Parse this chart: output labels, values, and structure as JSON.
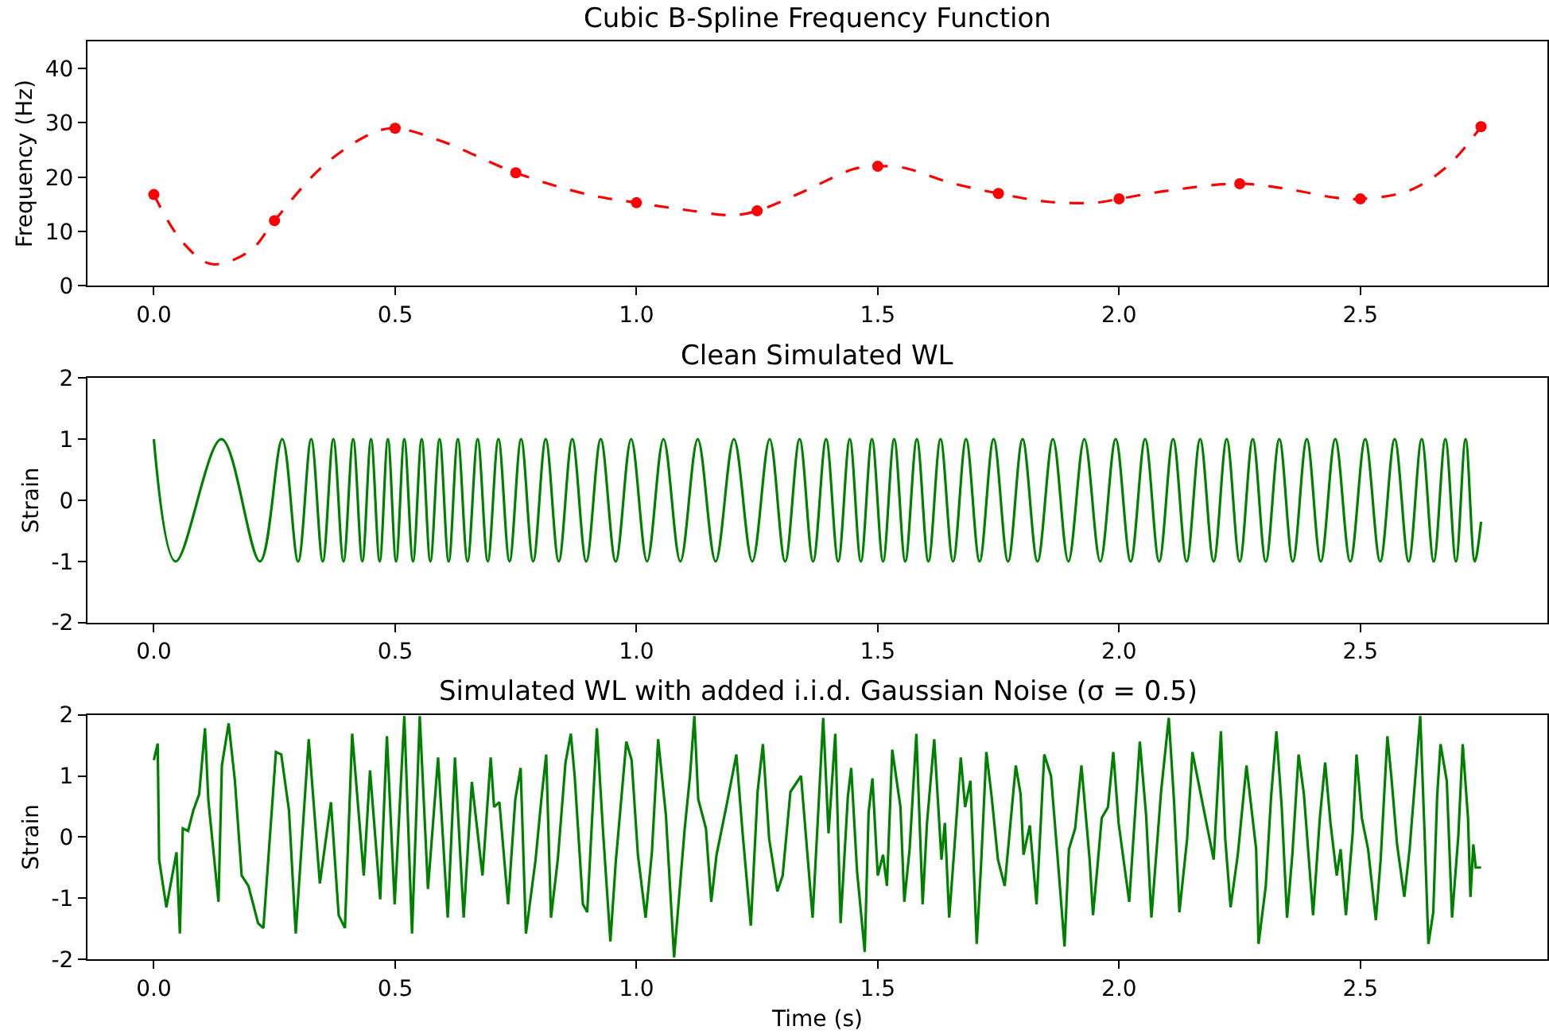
{
  "chart_data": [
    {
      "type": "line",
      "title": "Cubic B-Spline Frequency Function",
      "ylabel": "Frequency (Hz)",
      "xlim": [
        -0.1375,
        2.8875
      ],
      "xticks": [
        {
          "value": 0,
          "label": "0.0"
        },
        {
          "value": 0.5,
          "label": "0.5"
        },
        {
          "value": 1,
          "label": "1.0"
        },
        {
          "value": 1.5,
          "label": "1.5"
        },
        {
          "value": 2,
          "label": "2.0"
        },
        {
          "value": 2.5,
          "label": "2.5"
        }
      ],
      "ylim": [
        0,
        45
      ],
      "yticks": [
        0,
        10,
        20,
        30,
        40
      ],
      "series": [
        {
          "color": "#ff0000",
          "line_style": "dashed",
          "marker": "none",
          "x": [
            0,
            0.06,
            0.12,
            0.2,
            0.25,
            0.35,
            0.45,
            0.5,
            0.6,
            0.75,
            0.9,
            1.0,
            1.1,
            1.2,
            1.25,
            1.35,
            1.45,
            1.5,
            1.55,
            1.65,
            1.75,
            1.85,
            1.95,
            2.0,
            2.1,
            2.25,
            2.35,
            2.45,
            2.5,
            2.6,
            2.68,
            2.75
          ],
          "values": [
            16.8,
            8,
            4,
            6.5,
            12,
            22,
            28,
            29,
            26.5,
            20.8,
            16.8,
            15.3,
            14,
            13,
            13.8,
            17.5,
            21.5,
            22,
            21.8,
            19,
            17,
            15.5,
            15.3,
            16,
            17.5,
            18.8,
            17.8,
            16.2,
            16,
            17.5,
            22,
            29.3
          ]
        },
        {
          "type": "scatter",
          "color": "#ff0000",
          "marker": "circle",
          "x": [
            0,
            0.25,
            0.5,
            0.75,
            1.0,
            1.25,
            1.5,
            1.75,
            2.0,
            2.25,
            2.5,
            2.75
          ],
          "values": [
            16.8,
            12,
            29,
            20.8,
            15.3,
            13.8,
            22,
            17,
            16,
            18.8,
            16,
            29.3
          ]
        }
      ]
    },
    {
      "type": "line",
      "title": "Clean Simulated WL",
      "ylabel": "Strain",
      "xlim": [
        -0.1375,
        2.8875
      ],
      "xticks": [
        {
          "value": 0,
          "label": "0.0"
        },
        {
          "value": 0.5,
          "label": "0.5"
        },
        {
          "value": 1,
          "label": "1.0"
        },
        {
          "value": 1.5,
          "label": "1.5"
        },
        {
          "value": 2,
          "label": "2.0"
        },
        {
          "value": 2.5,
          "label": "2.5"
        }
      ],
      "ylim": [
        -2,
        2
      ],
      "yticks": [
        -2,
        -1,
        0,
        1,
        2
      ],
      "series": [
        {
          "color": "#008000",
          "line_style": "solid",
          "marker": "none",
          "x": [
            0,
            0.045,
            0.14,
            0.22,
            0.266,
            0.299,
            0.326,
            0.35,
            0.372,
            0.393,
            0.413,
            0.432,
            0.45,
            0.468,
            0.485,
            0.502,
            0.519,
            0.537,
            0.555,
            0.573,
            0.592,
            0.611,
            0.63,
            0.65,
            0.671,
            0.692,
            0.714,
            0.737,
            0.761,
            0.786,
            0.812,
            0.839,
            0.867,
            0.896,
            0.926,
            0.957,
            0.989,
            1.022,
            1.056,
            1.091,
            1.127,
            1.164,
            1.202,
            1.24,
            1.276,
            1.308,
            1.338,
            1.366,
            1.393,
            1.418,
            1.442,
            1.465,
            1.488,
            1.511,
            1.534,
            1.557,
            1.581,
            1.605,
            1.63,
            1.656,
            1.683,
            1.711,
            1.74,
            1.77,
            1.8,
            1.831,
            1.863,
            1.895,
            1.928,
            1.961,
            1.993,
            2.024,
            2.054,
            2.083,
            2.112,
            2.14,
            2.168,
            2.196,
            2.223,
            2.25,
            2.277,
            2.304,
            2.332,
            2.36,
            2.389,
            2.418,
            2.448,
            2.479,
            2.51,
            2.541,
            2.571,
            2.6,
            2.627,
            2.652,
            2.676,
            2.698,
            2.718,
            2.737,
            2.75
          ],
          "values": [
            1,
            -1,
            1,
            -1,
            1,
            -1,
            1,
            -1,
            1,
            -1,
            1,
            -1,
            1,
            -1,
            1,
            -1,
            1,
            -1,
            1,
            -1,
            1,
            -1,
            1,
            -1,
            1,
            -1,
            1,
            -1,
            1,
            -1,
            1,
            -1,
            1,
            -1,
            1,
            -1,
            1,
            -1,
            1,
            -1,
            1,
            -1,
            1,
            -1,
            1,
            -1,
            1,
            -1,
            1,
            -1,
            1,
            -1,
            1,
            -1,
            1,
            -1,
            1,
            -1,
            1,
            -1,
            1,
            -1,
            1,
            -1,
            1,
            -1,
            1,
            -1,
            1,
            -1,
            1,
            -1,
            1,
            -1,
            1,
            -1,
            1,
            -1,
            1,
            -1,
            1,
            -1,
            1,
            -1,
            1,
            -1,
            1,
            -1,
            1,
            -1,
            1,
            -1,
            1,
            -1,
            1,
            -1,
            1,
            -1,
            -0.35
          ]
        }
      ]
    },
    {
      "type": "line",
      "title": "Simulated WL with added i.i.d. Gaussian Noise (σ = 0.5)",
      "xlabel": "Time (s)",
      "ylabel": "Strain",
      "xlim": [
        -0.1375,
        2.8875
      ],
      "xticks": [
        {
          "value": 0,
          "label": "0.0"
        },
        {
          "value": 0.5,
          "label": "0.5"
        },
        {
          "value": 1,
          "label": "1.0"
        },
        {
          "value": 1.5,
          "label": "1.5"
        },
        {
          "value": 2,
          "label": "2.0"
        },
        {
          "value": 2.5,
          "label": "2.5"
        }
      ],
      "ylim": [
        -2,
        2
      ],
      "yticks": [
        -2,
        -1,
        0,
        1,
        2
      ],
      "series": [
        {
          "color": "#008000",
          "line_style": "solid",
          "marker": "none",
          "x": [
            0,
            0.008,
            0.011,
            0.026,
            0.047,
            0.054,
            0.06,
            0.071,
            0.082,
            0.094,
            0.106,
            0.113,
            0.134,
            0.141,
            0.155,
            0.168,
            0.182,
            0.196,
            0.216,
            0.227,
            0.253,
            0.264,
            0.28,
            0.294,
            0.321,
            0.344,
            0.367,
            0.383,
            0.396,
            0.411,
            0.435,
            0.448,
            0.469,
            0.483,
            0.499,
            0.519,
            0.535,
            0.551,
            0.568,
            0.589,
            0.609,
            0.624,
            0.642,
            0.659,
            0.681,
            0.698,
            0.705,
            0.716,
            0.734,
            0.749,
            0.76,
            0.771,
            0.791,
            0.804,
            0.813,
            0.823,
            0.837,
            0.853,
            0.864,
            0.872,
            0.889,
            0.898,
            0.918,
            0.931,
            0.946,
            0.957,
            0.979,
            0.99,
            1.003,
            1.019,
            1.032,
            1.045,
            1.061,
            1.078,
            1.1,
            1.111,
            1.12,
            1.128,
            1.144,
            1.155,
            1.166,
            1.188,
            1.207,
            1.22,
            1.237,
            1.251,
            1.262,
            1.275,
            1.292,
            1.303,
            1.319,
            1.341,
            1.365,
            1.387,
            1.398,
            1.412,
            1.423,
            1.438,
            1.445,
            1.457,
            1.473,
            1.481,
            1.489,
            1.5,
            1.511,
            1.519,
            1.53,
            1.547,
            1.555,
            1.566,
            1.58,
            1.593,
            1.602,
            1.617,
            1.632,
            1.639,
            1.648,
            1.657,
            1.672,
            1.681,
            1.692,
            1.705,
            1.714,
            1.725,
            1.736,
            1.749,
            1.763,
            1.775,
            1.786,
            1.796,
            1.802,
            1.815,
            1.829,
            1.845,
            1.859,
            1.873,
            1.887,
            1.896,
            1.909,
            1.922,
            1.939,
            1.946,
            1.955,
            1.964,
            1.977,
            1.988,
            1.999,
            2.021,
            2.043,
            2.056,
            2.067,
            2.087,
            2.103,
            2.114,
            2.125,
            2.141,
            2.152,
            2.196,
            2.211,
            2.22,
            2.231,
            2.246,
            2.264,
            2.284,
            2.289,
            2.304,
            2.315,
            2.326,
            2.337,
            2.348,
            2.359,
            2.372,
            2.383,
            2.402,
            2.416,
            2.427,
            2.438,
            2.451,
            2.459,
            2.47,
            2.484,
            2.492,
            2.503,
            2.516,
            2.532,
            2.542,
            2.556,
            2.564,
            2.576,
            2.591,
            2.602,
            2.615,
            2.624,
            2.633,
            2.641,
            2.651,
            2.659,
            2.666,
            2.679,
            2.69,
            2.703,
            2.712,
            2.723,
            2.728,
            2.734,
            2.739,
            2.75
          ],
          "values": [
            1.26,
            1.53,
            -0.37,
            -1.15,
            -0.25,
            -1.58,
            0.14,
            0.1,
            0.44,
            0.7,
            1.78,
            0.6,
            -1.06,
            1.17,
            1.86,
            0.92,
            -0.63,
            -0.8,
            -1.41,
            -1.49,
            1.39,
            1.35,
            0.44,
            -1.58,
            1.6,
            -0.76,
            0.57,
            -1.28,
            -1.49,
            1.69,
            -0.63,
            1.09,
            -1.02,
            1.65,
            -1.1,
            1.98,
            -1.58,
            1.98,
            -0.85,
            1.3,
            -1.32,
            1.3,
            -1.32,
            0.9,
            -0.63,
            1.3,
            0.49,
            0.57,
            -1.1,
            0.62,
            1.13,
            -1.58,
            -0.37,
            0.7,
            1.35,
            -1.32,
            -0.37,
            1.22,
            1.69,
            1.0,
            -1.1,
            -1.23,
            1.78,
            0.06,
            -1.71,
            -0.42,
            1.56,
            1.26,
            -0.29,
            -1.32,
            -0.25,
            1.6,
            0.36,
            -1.97,
            0.14,
            1.0,
            1.98,
            0.62,
            0.14,
            -1.06,
            -0.29,
            0.57,
            1.35,
            0.06,
            -1.45,
            0.74,
            1.52,
            -0.03,
            -0.89,
            -0.63,
            0.74,
            1.0,
            -1.32,
            1.95,
            0.06,
            1.69,
            -1.41,
            0.66,
            1.13,
            -0.55,
            -1.88,
            0.4,
            0.96,
            -0.63,
            -0.29,
            -0.8,
            1.43,
            0.49,
            -1.06,
            -0.2,
            1.69,
            -1.1,
            0.23,
            1.6,
            -0.37,
            0.23,
            -1.32,
            -0.37,
            1.3,
            0.49,
            0.92,
            -1.75,
            -0.46,
            1.39,
            0.66,
            -0.37,
            -0.8,
            0.23,
            1.17,
            0.7,
            -0.29,
            0.19,
            -1.1,
            1.35,
            1.0,
            -0.37,
            -1.79,
            -0.2,
            0.14,
            1.17,
            -0.37,
            -1.28,
            -0.5,
            0.31,
            0.49,
            1.39,
            0.23,
            -1.06,
            1.56,
            0.36,
            -1.32,
            0.74,
            1.95,
            0.57,
            -1.23,
            -0.03,
            1.39,
            -0.37,
            1.73,
            -0.03,
            -1.15,
            -0.29,
            1.17,
            -0.2,
            -1.75,
            -0.8,
            0.66,
            1.73,
            0.49,
            -1.32,
            -0.29,
            1.35,
            0.7,
            -1.28,
            0.31,
            1.22,
            0.23,
            -0.63,
            -0.2,
            -1.28,
            0.06,
            1.35,
            0.31,
            -0.2,
            -1.36,
            -0.37,
            1.65,
            1.0,
            -0.12,
            -0.98,
            -0.2,
            1.09,
            1.98,
            0.06,
            -1.75,
            -1.23,
            0.66,
            1.52,
            0.92,
            -1.32,
            0.03,
            1.52,
            0.31,
            -0.98,
            -0.12,
            -0.5,
            -0.5
          ]
        }
      ]
    }
  ]
}
